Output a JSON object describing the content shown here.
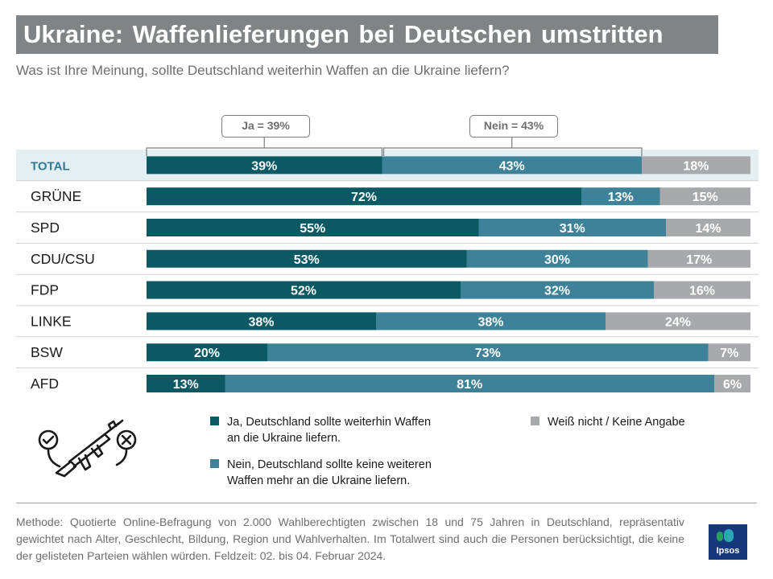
{
  "header": {
    "title": "Ukraine: Waffenlieferungen bei Deutschen umstritten",
    "subtitle": "Was ist Ihre Meinung, sollte Deutschland weiterhin Waffen an die Ukraine liefern?"
  },
  "brackets": {
    "ja": "Ja = 39%",
    "nein": "Nein = 43%"
  },
  "colors": {
    "ja": "#0b5a63",
    "nein": "#3e8299",
    "unknown": "#a7a9ac",
    "total_row_bg": "#e3eff3",
    "total_label": "#2f7a94"
  },
  "chart_data": {
    "type": "bar",
    "orientation": "horizontal",
    "stacked": true,
    "categories": [
      "TOTAL",
      "GRÜNE",
      "SPD",
      "CDU/CSU",
      "FDP",
      "LINKE",
      "BSW",
      "AFD"
    ],
    "series": [
      {
        "name": "Ja, Deutschland sollte weiterhin Waffen an die Ukraine liefern.",
        "key": "ja",
        "values": [
          39,
          72,
          55,
          53,
          52,
          38,
          20,
          13
        ]
      },
      {
        "name": "Nein, Deutschland sollte keine weiteren Waffen mehr an die Ukraine liefern.",
        "key": "nein",
        "values": [
          43,
          13,
          31,
          30,
          32,
          38,
          73,
          81
        ]
      },
      {
        "name": "Weiß nicht / Keine Angabe",
        "key": "unknown",
        "values": [
          18,
          15,
          14,
          17,
          16,
          24,
          7,
          6
        ]
      }
    ],
    "value_suffix": "%",
    "xlim": [
      0,
      100
    ]
  },
  "legend": {
    "ja_line1": "Ja, Deutschland sollte weiterhin Waffen",
    "ja_line2": "an die Ukraine liefern.",
    "nein_line1": "Nein, Deutschland sollte keine weiteren",
    "nein_line2": "Waffen mehr an die Ukraine liefern.",
    "unknown": "Weiß nicht / Keine Angabe"
  },
  "footer": {
    "text": "Methode: Quotierte Online-Befragung von 2.000 Wahlberechtigten zwischen 18 und 75 Jahren in Deutschland, repräsentativ gewichtet nach Alter, Geschlecht, Bildung, Region und Wahlverhalten. Im Totalwert sind auch die Personen berücksichtigt, die keine der gelisteten Parteien wählen würden. Feldzeit: 02. bis 04. Februar 2024.",
    "logo": "Ipsos"
  },
  "icons": [
    "check-circle-icon",
    "assault-rifle-icon",
    "cross-circle-icon"
  ]
}
